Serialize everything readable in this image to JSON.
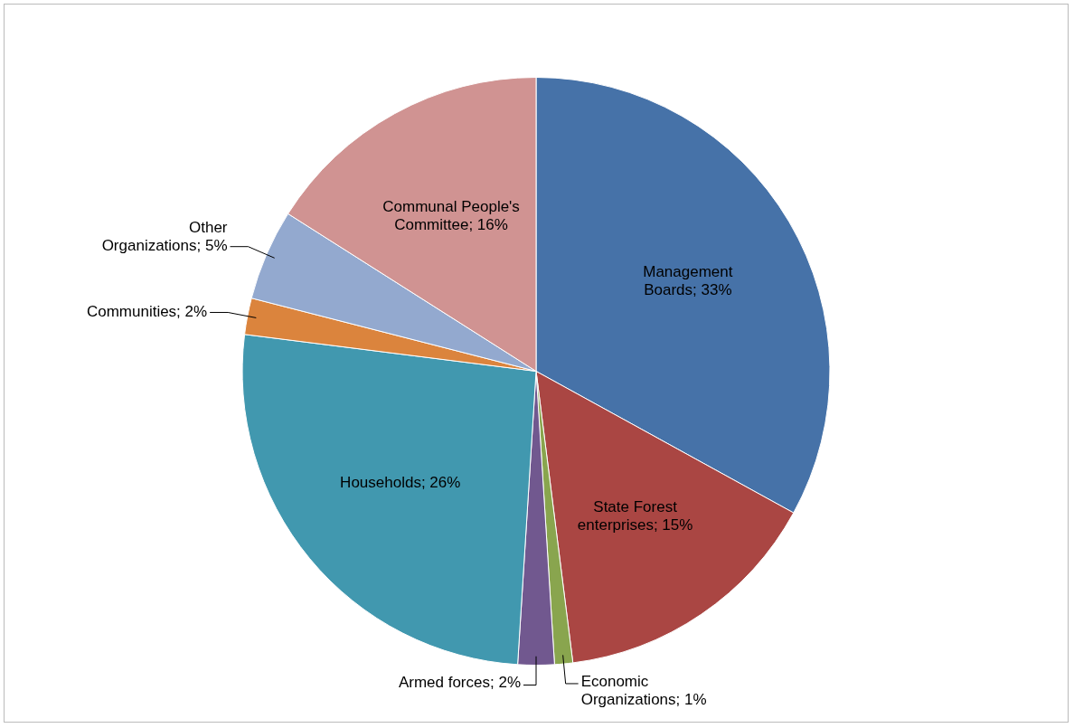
{
  "chart_data": {
    "type": "pie",
    "categories": [
      "Management Boards",
      "State Forest enterprises",
      "Economic Organizations",
      "Armed forces",
      "Households",
      "Communities",
      "Other Organizations",
      "Communal People's Committee"
    ],
    "values": [
      33,
      15,
      1,
      2,
      26,
      2,
      5,
      16
    ],
    "value_labels": [
      "33%",
      "15%",
      "1%",
      "2%",
      "26%",
      "2%",
      "5%",
      "16%"
    ],
    "colors": [
      "#4672a8",
      "#aa4643",
      "#89a54e",
      "#71588f",
      "#4198af",
      "#db843d",
      "#93a9cf",
      "#d09392"
    ],
    "legend": false
  }
}
